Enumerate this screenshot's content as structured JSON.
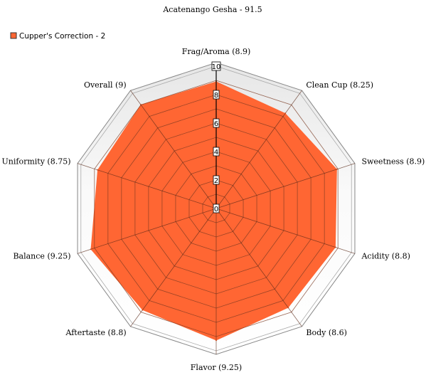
{
  "chart_data": {
    "type": "radar",
    "title": "Acatenango Gesha - 91.5",
    "categories": [
      "Frag/Aroma (8.9)",
      "Clean Cup (8.25)",
      "Sweetness (8.9)",
      "Acidity (8.8)",
      "Body (8.6)",
      "Flavor (9.25)",
      "Aftertaste (8.8)",
      "Balance (9.25)",
      "Uniformity (8.75)",
      "Overall (9)"
    ],
    "series": [
      {
        "name": "Cupper's Correction - 2",
        "values": [
          8.9,
          8.25,
          8.9,
          8.8,
          8.6,
          9.25,
          8.8,
          9.25,
          8.75,
          9
        ],
        "color": "#ff6633"
      }
    ],
    "ylim": [
      0,
      10
    ],
    "ticks": [
      "0",
      "2",
      "4",
      "6",
      "8",
      "10"
    ],
    "grid": true,
    "legend_position": "top-left"
  }
}
